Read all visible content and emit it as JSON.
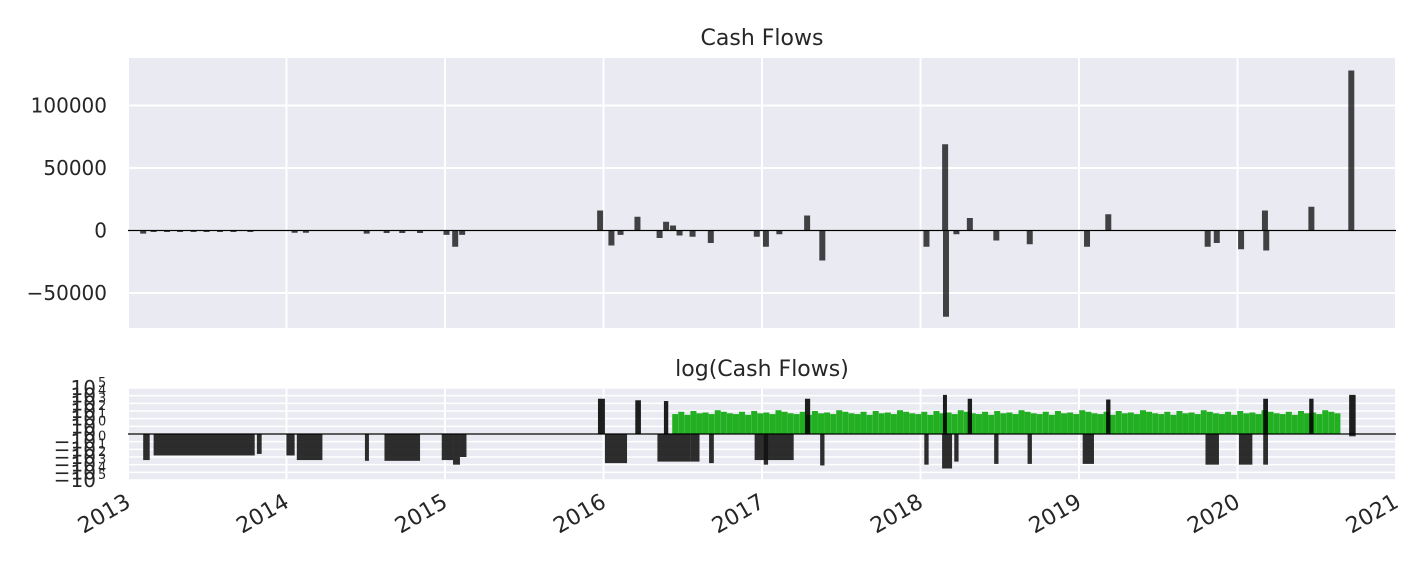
{
  "chart_data": [
    {
      "type": "bar",
      "title": "Cash Flows",
      "xlabel": "",
      "ylabel": "",
      "x_ticks": [
        "2013",
        "2014",
        "2015",
        "2016",
        "2017",
        "2018",
        "2019",
        "2020",
        "2021"
      ],
      "x_range": [
        "2013-01-01",
        "2021-01-01"
      ],
      "y_ticks": [
        -50000,
        0,
        50000,
        100000
      ],
      "y_tick_labels": [
        "−50000",
        "0",
        "50000",
        "100000"
      ],
      "ylim": [
        -78000,
        138000
      ],
      "grid": true,
      "colors": {
        "bars": "#000000",
        "background": "#eaeaf2",
        "grid": "#ffffff",
        "zero_line": "#000000"
      },
      "bars": [
        {
          "date": "2013-02-05",
          "value": -2500
        },
        {
          "date": "2013-03-01",
          "value": -1200
        },
        {
          "date": "2013-04-01",
          "value": -1200
        },
        {
          "date": "2013-05-01",
          "value": -1200
        },
        {
          "date": "2013-06-01",
          "value": -1200
        },
        {
          "date": "2013-07-01",
          "value": -1200
        },
        {
          "date": "2013-08-01",
          "value": -1200
        },
        {
          "date": "2013-09-01",
          "value": -1200
        },
        {
          "date": "2013-10-10",
          "value": -1200
        },
        {
          "date": "2014-01-20",
          "value": -1800
        },
        {
          "date": "2014-02-15",
          "value": -1800
        },
        {
          "date": "2014-07-05",
          "value": -2500
        },
        {
          "date": "2014-08-20",
          "value": -2000
        },
        {
          "date": "2014-09-25",
          "value": -2000
        },
        {
          "date": "2014-11-05",
          "value": -2000
        },
        {
          "date": "2015-01-05",
          "value": -3500
        },
        {
          "date": "2015-01-25",
          "value": -13000
        },
        {
          "date": "2015-02-10",
          "value": -3500
        },
        {
          "date": "2015-12-25",
          "value": 16000
        },
        {
          "date": "2016-01-20",
          "value": -12000
        },
        {
          "date": "2016-02-10",
          "value": -3500
        },
        {
          "date": "2016-03-20",
          "value": 11000
        },
        {
          "date": "2016-05-10",
          "value": -6000
        },
        {
          "date": "2016-05-25",
          "value": 7000
        },
        {
          "date": "2016-06-10",
          "value": 4000
        },
        {
          "date": "2016-06-25",
          "value": -4000
        },
        {
          "date": "2016-07-25",
          "value": -5000
        },
        {
          "date": "2016-09-05",
          "value": -10000
        },
        {
          "date": "2016-12-20",
          "value": -5000
        },
        {
          "date": "2017-01-10",
          "value": -13000
        },
        {
          "date": "2017-02-10",
          "value": -3000
        },
        {
          "date": "2017-04-15",
          "value": 12000
        },
        {
          "date": "2017-05-20",
          "value": -24000
        },
        {
          "date": "2018-01-15",
          "value": -13000
        },
        {
          "date": "2018-02-27",
          "value": 69000
        },
        {
          "date": "2018-03-01",
          "value": -69000
        },
        {
          "date": "2018-03-25",
          "value": -3000
        },
        {
          "date": "2018-04-25",
          "value": 10000
        },
        {
          "date": "2018-06-25",
          "value": -8000
        },
        {
          "date": "2018-09-10",
          "value": -11000
        },
        {
          "date": "2019-01-20",
          "value": -13000
        },
        {
          "date": "2019-03-10",
          "value": 13000
        },
        {
          "date": "2019-10-25",
          "value": -13000
        },
        {
          "date": "2019-11-15",
          "value": -10000
        },
        {
          "date": "2020-01-10",
          "value": -15000
        },
        {
          "date": "2020-03-05",
          "value": 16000
        },
        {
          "date": "2020-03-08",
          "value": -16000
        },
        {
          "date": "2020-06-20",
          "value": 19000
        },
        {
          "date": "2020-09-20",
          "value": 128000
        }
      ]
    },
    {
      "type": "bar",
      "title": "log(Cash Flows)",
      "xlabel": "",
      "ylabel": "",
      "x_ticks": [
        "2013",
        "2014",
        "2015",
        "2016",
        "2017",
        "2018",
        "2019",
        "2020",
        "2021"
      ],
      "y_scale": "symlog",
      "ylim": [
        -6,
        6
      ],
      "y_ticks": [
        {
          "base": "−10",
          "exp": "5",
          "value": -6
        },
        {
          "base": "−10",
          "exp": "4",
          "value": -5
        },
        {
          "base": "−10",
          "exp": "3",
          "value": -4
        },
        {
          "base": "−10",
          "exp": "2",
          "value": -3
        },
        {
          "base": "−10",
          "exp": "1",
          "value": -2
        },
        {
          "base": "−10",
          "exp": "0",
          "value": -1
        },
        {
          "base": "0",
          "exp": "",
          "value": 0
        },
        {
          "base": "10",
          "exp": "0",
          "value": 1
        },
        {
          "base": "10",
          "exp": "1",
          "value": 2
        },
        {
          "base": "10",
          "exp": "2",
          "value": 3
        },
        {
          "base": "10",
          "exp": "3",
          "value": 4
        },
        {
          "base": "10",
          "exp": "4",
          "value": 5
        },
        {
          "base": "10",
          "exp": "5",
          "value": 6
        }
      ],
      "colors": {
        "negative": "#111111",
        "positive": "#000000",
        "small_positive": "#22b022",
        "background": "#eaeaf2",
        "grid": "#ffffff"
      },
      "series": [
        {
          "name": "",
          "color": "#111111",
          "from": "2013-02-05",
          "to": "2013-02-20",
          "value": -3.4
        },
        {
          "name": "",
          "color": "#111111",
          "from": "2013-03-01",
          "to": "2013-10-20",
          "value": -2.8
        },
        {
          "name": "",
          "color": "#111111",
          "from": "2013-10-25",
          "to": "2013-11-05",
          "value": -2.6
        },
        {
          "name": "",
          "color": "#111111",
          "from": "2014-01-01",
          "to": "2014-01-20",
          "value": -2.8
        },
        {
          "name": "",
          "color": "#111111",
          "from": "2014-01-25",
          "to": "2014-03-25",
          "value": -3.4
        },
        {
          "name": "",
          "color": "#111111",
          "from": "2014-07-01",
          "to": "2014-07-10",
          "value": -3.5
        },
        {
          "name": "",
          "color": "#111111",
          "from": "2014-08-15",
          "to": "2014-11-05",
          "value": -3.5
        },
        {
          "name": "",
          "color": "#111111",
          "from": "2014-12-25",
          "to": "2015-01-20",
          "value": -3.4
        },
        {
          "name": "",
          "color": "#111111",
          "from": "2015-01-20",
          "to": "2015-02-05",
          "value": -4.0
        },
        {
          "name": "",
          "color": "#111111",
          "from": "2015-02-05",
          "to": "2015-02-20",
          "value": -3.0
        },
        {
          "name": "",
          "color": "#000000",
          "from": "2015-12-20",
          "to": "2016-01-05",
          "value": 4.6
        },
        {
          "name": "",
          "color": "#111111",
          "from": "2016-01-05",
          "to": "2016-02-25",
          "value": -3.8
        },
        {
          "name": "",
          "color": "#000000",
          "from": "2016-03-15",
          "to": "2016-03-28",
          "value": 4.4
        },
        {
          "name": "",
          "color": "#111111",
          "from": "2016-05-05",
          "to": "2016-07-20",
          "value": -3.6
        },
        {
          "name": "",
          "color": "#000000",
          "from": "2016-05-20",
          "to": "2016-05-30",
          "value": 4.3
        },
        {
          "name": "",
          "color": "#111111",
          "from": "2016-07-20",
          "to": "2016-08-10",
          "value": -3.6
        },
        {
          "name": "",
          "color": "#111111",
          "from": "2016-09-01",
          "to": "2016-09-12",
          "value": -3.8
        },
        {
          "name": "",
          "color": "#111111",
          "from": "2016-12-15",
          "to": "2017-03-15",
          "value": -3.4
        },
        {
          "name": "",
          "color": "#111111",
          "from": "2017-01-05",
          "to": "2017-01-15",
          "value": -4.0
        },
        {
          "name": "",
          "color": "#000000",
          "from": "2017-04-10",
          "to": "2017-04-22",
          "value": 4.6
        },
        {
          "name": "",
          "color": "#111111",
          "from": "2017-05-15",
          "to": "2017-05-25",
          "value": -4.1
        },
        {
          "name": "",
          "color": "#111111",
          "from": "2018-01-10",
          "to": "2018-01-20",
          "value": -4.0
        },
        {
          "name": "",
          "color": "#111111",
          "from": "2018-02-20",
          "to": "2018-03-15",
          "value": -4.5
        },
        {
          "name": "",
          "color": "#000000",
          "from": "2018-02-22",
          "to": "2018-03-02",
          "value": 5.1
        },
        {
          "name": "",
          "color": "#111111",
          "from": "2018-03-20",
          "to": "2018-03-30",
          "value": -3.6
        },
        {
          "name": "",
          "color": "#000000",
          "from": "2018-04-20",
          "to": "2018-04-30",
          "value": 4.6
        },
        {
          "name": "",
          "color": "#111111",
          "from": "2018-06-20",
          "to": "2018-06-30",
          "value": -3.9
        },
        {
          "name": "",
          "color": "#111111",
          "from": "2018-09-05",
          "to": "2018-09-15",
          "value": -3.9
        },
        {
          "name": "",
          "color": "#111111",
          "from": "2019-01-10",
          "to": "2019-02-05",
          "value": -3.9
        },
        {
          "name": "",
          "color": "#000000",
          "from": "2019-03-05",
          "to": "2019-03-15",
          "value": 4.5
        },
        {
          "name": "",
          "color": "#111111",
          "from": "2019-10-20",
          "to": "2019-11-20",
          "value": -4.0
        },
        {
          "name": "",
          "color": "#111111",
          "from": "2020-01-05",
          "to": "2020-02-05",
          "value": -4.0
        },
        {
          "name": "",
          "color": "#000000",
          "from": "2020-03-01",
          "to": "2020-03-12",
          "value": 4.6
        },
        {
          "name": "",
          "color": "#111111",
          "from": "2020-03-01",
          "to": "2020-03-12",
          "value": -4.0
        },
        {
          "name": "",
          "color": "#000000",
          "from": "2020-06-15",
          "to": "2020-06-25",
          "value": 4.6
        },
        {
          "name": "",
          "color": "#000000",
          "from": "2020-09-15",
          "to": "2020-09-30",
          "value": 5.1
        },
        {
          "name": "",
          "color": "#111111",
          "from": "2020-09-15",
          "to": "2020-09-30",
          "value": -0.3
        }
      ],
      "green_bars": {
        "from": "2016-06-15",
        "to": "2020-08-31",
        "values": [
          2.6,
          2.9,
          2.5,
          3.0,
          2.7,
          2.8,
          2.6,
          3.1,
          2.9,
          2.7
        ],
        "color": "#22b022"
      }
    }
  ]
}
